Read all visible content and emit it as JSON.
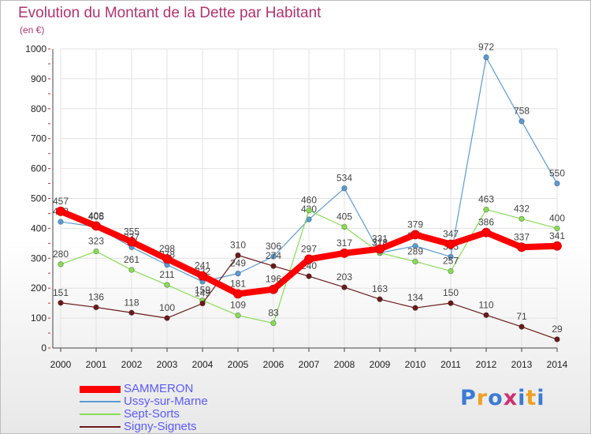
{
  "title": "Evolution du Montant de la Dette par Habitant",
  "subtitle": "(en €)",
  "logo": {
    "text": "Proxiti",
    "colors": [
      "#3a7bd5",
      "#f0a020",
      "#3a7bd5",
      "#d03070",
      "#3a7bd5",
      "#f0a020",
      "#3a7bd5"
    ]
  },
  "chart_data": {
    "type": "line",
    "title": "Evolution du Montant de la Dette par Habitant",
    "ylabel": "(en €)",
    "xlabel": "",
    "ylim": [
      0,
      1000
    ],
    "yticks": [
      0,
      100,
      200,
      300,
      400,
      500,
      600,
      700,
      800,
      900,
      1000
    ],
    "categories": [
      "2000",
      "2001",
      "2002",
      "2003",
      "2004",
      "2005",
      "2006",
      "2007",
      "2008",
      "2009",
      "2010",
      "2011",
      "2012",
      "2013",
      "2014"
    ],
    "grid": true,
    "legend_position": "bottom-left",
    "series": [
      {
        "name": "SAMMERON",
        "color": "#ff0000",
        "values": [
          457,
          408,
          355,
          298,
          241,
          181,
          196,
          297,
          317,
          331,
          379,
          347,
          386,
          337,
          341
        ]
      },
      {
        "name": "Ussy-sur-Marne",
        "color": "#5b9bd5",
        "values": [
          422,
          405,
          337,
          278,
          222,
          249,
          306,
          430,
          534,
          318,
          341,
          305,
          972,
          758,
          550
        ]
      },
      {
        "name": "Sept-Sorts",
        "color": "#88dd55",
        "values": [
          280,
          323,
          261,
          211,
          159,
          109,
          83,
          460,
          405,
          318,
          289,
          257,
          463,
          432,
          400
        ]
      },
      {
        "name": "Signy-Signets",
        "color": "#6b1a1a",
        "values": [
          151,
          136,
          118,
          100,
          149,
          310,
          274,
          240,
          203,
          163,
          134,
          150,
          110,
          71,
          29
        ]
      }
    ]
  }
}
